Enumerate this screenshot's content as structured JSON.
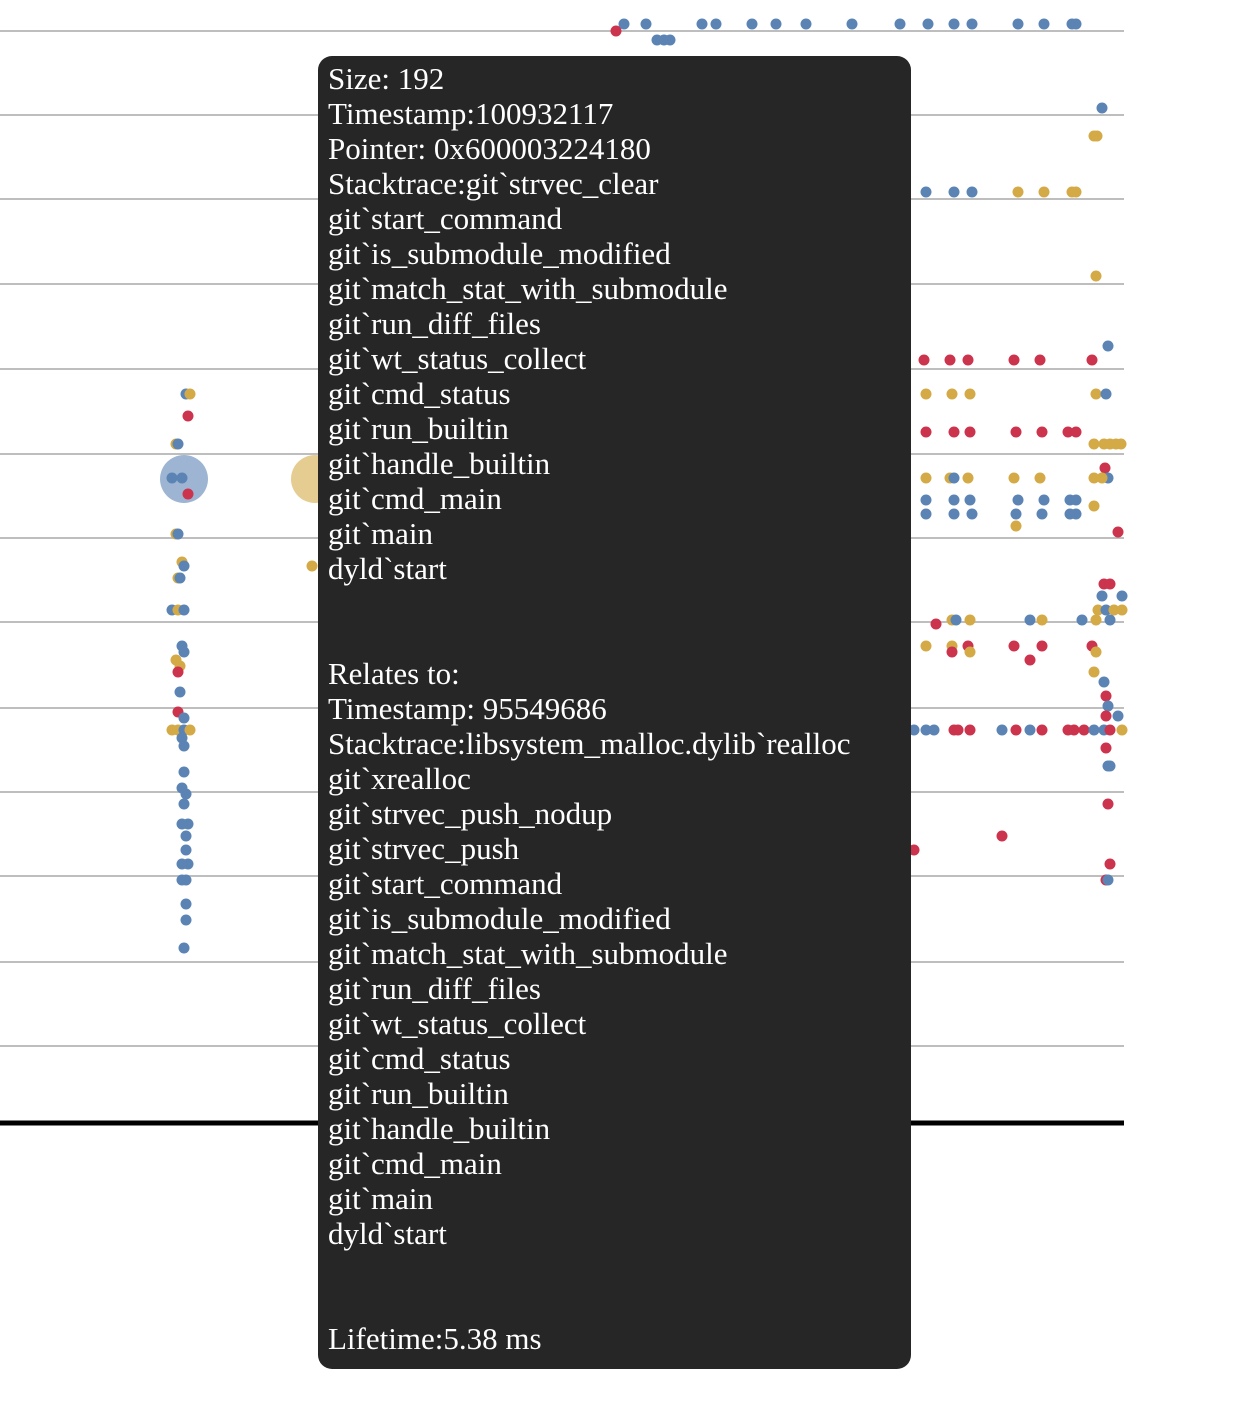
{
  "colors": {
    "blue": "#5b84b4",
    "gold": "#d4aa47",
    "red": "#cc334d",
    "grid": "#a9a9a9",
    "axis": "#000000",
    "tooltip_bg": "#262626",
    "tooltip_text": "#ffffff"
  },
  "tooltip": {
    "size": "Size: 192",
    "timestamp": "Timestamp:100932117",
    "pointer": "Pointer: 0x600003224180",
    "stack": [
      "Stacktrace:git`strvec_clear",
      "git`start_command",
      "git`is_submodule_modified",
      "git`match_stat_with_submodule",
      "git`run_diff_files",
      "git`wt_status_collect",
      "git`cmd_status",
      "git`run_builtin",
      "git`handle_builtin",
      "git`cmd_main",
      "git`main",
      "dyld`start"
    ],
    "relates_heading": "Relates to:",
    "relates_timestamp": "Timestamp: 95549686",
    "relates_stack": [
      "Stacktrace:libsystem_malloc.dylib`realloc",
      "git`xrealloc",
      "git`strvec_push_nodup",
      "git`strvec_push",
      "git`start_command",
      "git`is_submodule_modified",
      "git`match_stat_with_submodule",
      "git`run_diff_files",
      "git`wt_status_collect",
      "git`cmd_status",
      "git`run_builtin",
      "git`handle_builtin",
      "git`cmd_main",
      "git`main",
      "dyld`start"
    ],
    "lifetime": "Lifetime:5.38 ms"
  }
}
